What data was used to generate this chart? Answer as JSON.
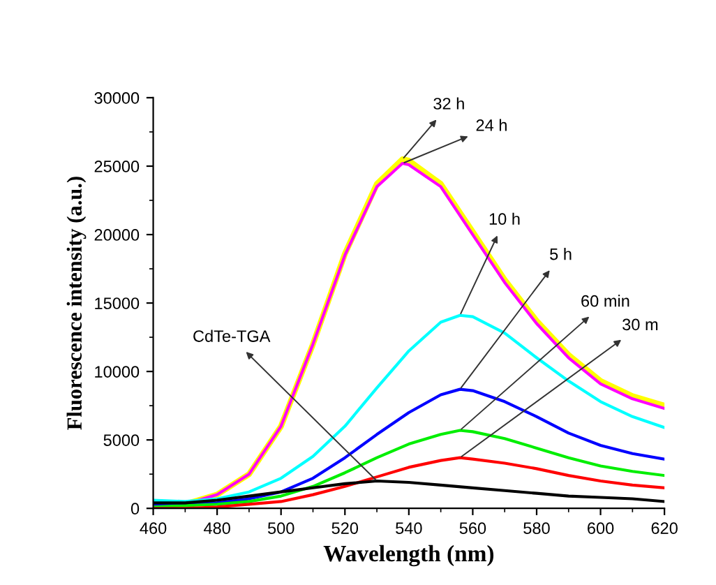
{
  "chart_data": {
    "type": "line",
    "xlabel": "Wavelength (nm)",
    "ylabel": "Fluorescence intensity (a.u.)",
    "xlim": [
      460,
      620
    ],
    "ylim": [
      0,
      30000
    ],
    "xticks": [
      460,
      480,
      500,
      520,
      540,
      560,
      580,
      600,
      620
    ],
    "yticks": [
      0,
      5000,
      10000,
      15000,
      20000,
      25000,
      30000
    ],
    "grid": false,
    "legend": false,
    "marker": "none",
    "line_style": "solid",
    "series": [
      {
        "name": "32 h",
        "color": "#ffff00",
        "x": [
          460,
          470,
          480,
          490,
          500,
          510,
          520,
          530,
          538,
          540,
          550,
          560,
          570,
          580,
          590,
          600,
          610,
          620
        ],
        "values": [
          100,
          300,
          1000,
          2500,
          6000,
          12000,
          18600,
          23700,
          25500,
          25400,
          23700,
          20200,
          16700,
          13700,
          11200,
          9300,
          8200,
          7500
        ]
      },
      {
        "name": "24 h",
        "color": "#ff00ff",
        "x": [
          460,
          470,
          480,
          490,
          500,
          510,
          520,
          530,
          538,
          540,
          550,
          560,
          570,
          580,
          590,
          600,
          610,
          620
        ],
        "values": [
          100,
          300,
          1000,
          2500,
          6000,
          12000,
          18500,
          23500,
          25200,
          25100,
          23500,
          20000,
          16500,
          13500,
          11000,
          9100,
          8000,
          7300
        ]
      },
      {
        "name": "10 h",
        "color": "#00ffff",
        "x": [
          460,
          470,
          480,
          490,
          500,
          510,
          520,
          530,
          540,
          550,
          556,
          560,
          570,
          580,
          590,
          600,
          610,
          620
        ],
        "values": [
          600,
          500,
          700,
          1200,
          2200,
          3800,
          6000,
          8800,
          11500,
          13600,
          14100,
          14000,
          12800,
          11000,
          9300,
          7800,
          6700,
          5900
        ]
      },
      {
        "name": "5 h",
        "color": "#0000ff",
        "x": [
          460,
          470,
          480,
          490,
          500,
          510,
          520,
          530,
          540,
          550,
          556,
          560,
          570,
          580,
          590,
          600,
          610,
          620
        ],
        "values": [
          300,
          300,
          400,
          700,
          1200,
          2200,
          3700,
          5400,
          7000,
          8300,
          8700,
          8600,
          7800,
          6700,
          5500,
          4600,
          4000,
          3600
        ]
      },
      {
        "name": "60 min",
        "color": "#00ee00",
        "x": [
          460,
          470,
          480,
          490,
          500,
          510,
          520,
          530,
          540,
          550,
          556,
          560,
          570,
          580,
          590,
          600,
          610,
          620
        ],
        "values": [
          100,
          200,
          300,
          500,
          900,
          1600,
          2600,
          3700,
          4700,
          5400,
          5700,
          5600,
          5100,
          4400,
          3700,
          3100,
          2700,
          2400
        ]
      },
      {
        "name": "30 m",
        "color": "#ff0000",
        "x": [
          460,
          470,
          480,
          490,
          500,
          510,
          520,
          530,
          540,
          550,
          556,
          560,
          570,
          580,
          590,
          600,
          610,
          620
        ],
        "values": [
          0,
          0,
          100,
          300,
          500,
          1000,
          1600,
          2300,
          3000,
          3500,
          3700,
          3600,
          3300,
          2900,
          2400,
          2000,
          1700,
          1500
        ]
      },
      {
        "name": "CdTe-TGA",
        "color": "#000000",
        "x": [
          460,
          470,
          480,
          490,
          500,
          510,
          520,
          530,
          540,
          550,
          560,
          570,
          580,
          590,
          600,
          610,
          620
        ],
        "values": [
          400,
          400,
          600,
          900,
          1200,
          1500,
          1800,
          2000,
          1900,
          1700,
          1500,
          1300,
          1100,
          900,
          800,
          700,
          500
        ]
      }
    ]
  }
}
